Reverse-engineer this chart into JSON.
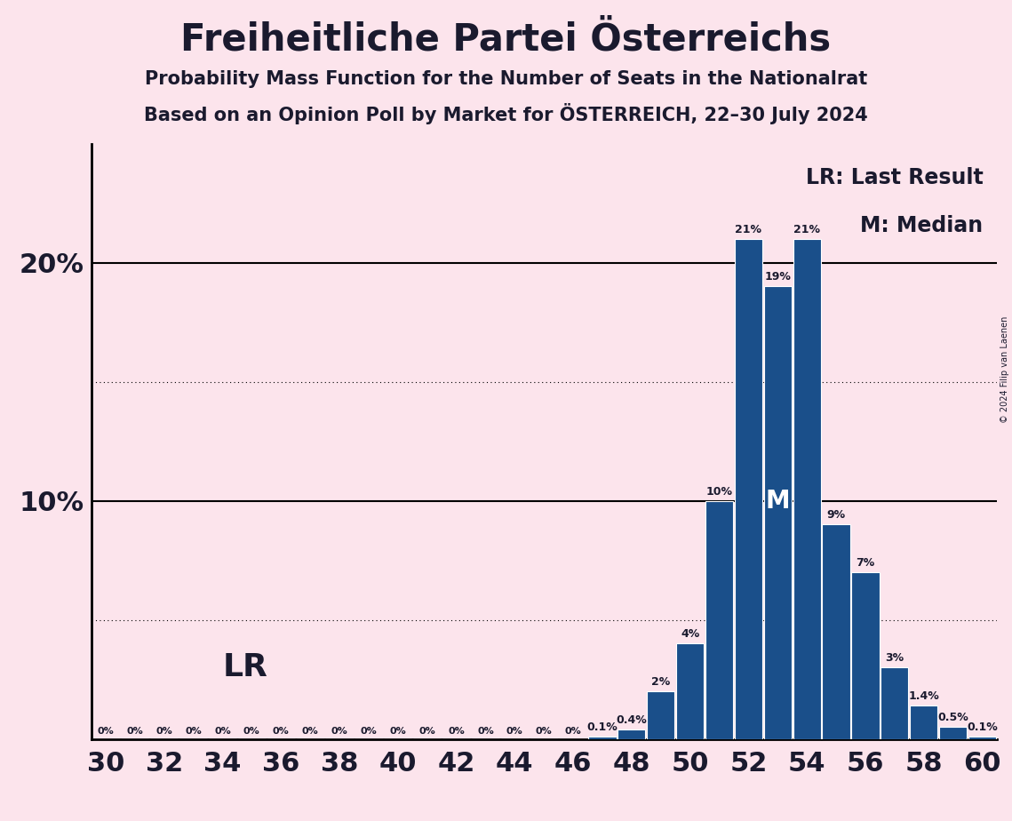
{
  "title": "Freiheitliche Partei Österreichs",
  "subtitle1": "Probability Mass Function for the Number of Seats in the Nationalrat",
  "subtitle2": "Based on an Opinion Poll by Market for ÖSTERREICH, 22–30 July 2024",
  "copyright": "© 2024 Filip van Laenen",
  "background_color": "#fce4ec",
  "bar_color": "#1a4f8a",
  "seats": [
    30,
    31,
    32,
    33,
    34,
    35,
    36,
    37,
    38,
    39,
    40,
    41,
    42,
    43,
    44,
    45,
    46,
    47,
    48,
    49,
    50,
    51,
    52,
    53,
    54,
    55,
    56,
    57,
    58,
    59,
    60
  ],
  "probabilities": [
    0.0,
    0.0,
    0.0,
    0.0,
    0.0,
    0.0,
    0.0,
    0.0,
    0.0,
    0.0,
    0.0,
    0.0,
    0.0,
    0.0,
    0.0,
    0.0,
    0.0,
    0.1,
    0.4,
    2.0,
    4.0,
    10.0,
    21.0,
    19.0,
    21.0,
    9.0,
    7.0,
    3.0,
    1.4,
    0.5,
    0.1
  ],
  "last_result_seat": 31,
  "median_seat": 53,
  "ylim": [
    0,
    25
  ],
  "dotted_lines": [
    5,
    15
  ],
  "solid_lines": [
    10,
    20
  ],
  "xmin": 29.5,
  "xmax": 60.5,
  "xticks": [
    30,
    32,
    34,
    36,
    38,
    40,
    42,
    44,
    46,
    48,
    50,
    52,
    54,
    56,
    58,
    60
  ],
  "legend_lr": "LR: Last Result",
  "legend_m": "M: Median",
  "lr_label": "LR",
  "m_label": "M",
  "title_fontsize": 30,
  "subtitle_fontsize": 15,
  "ytick_fontsize": 22,
  "xtick_fontsize": 22,
  "bar_label_fontsize": 9,
  "lr_fontsize": 26,
  "m_fontsize": 20,
  "legend_fontsize": 17
}
